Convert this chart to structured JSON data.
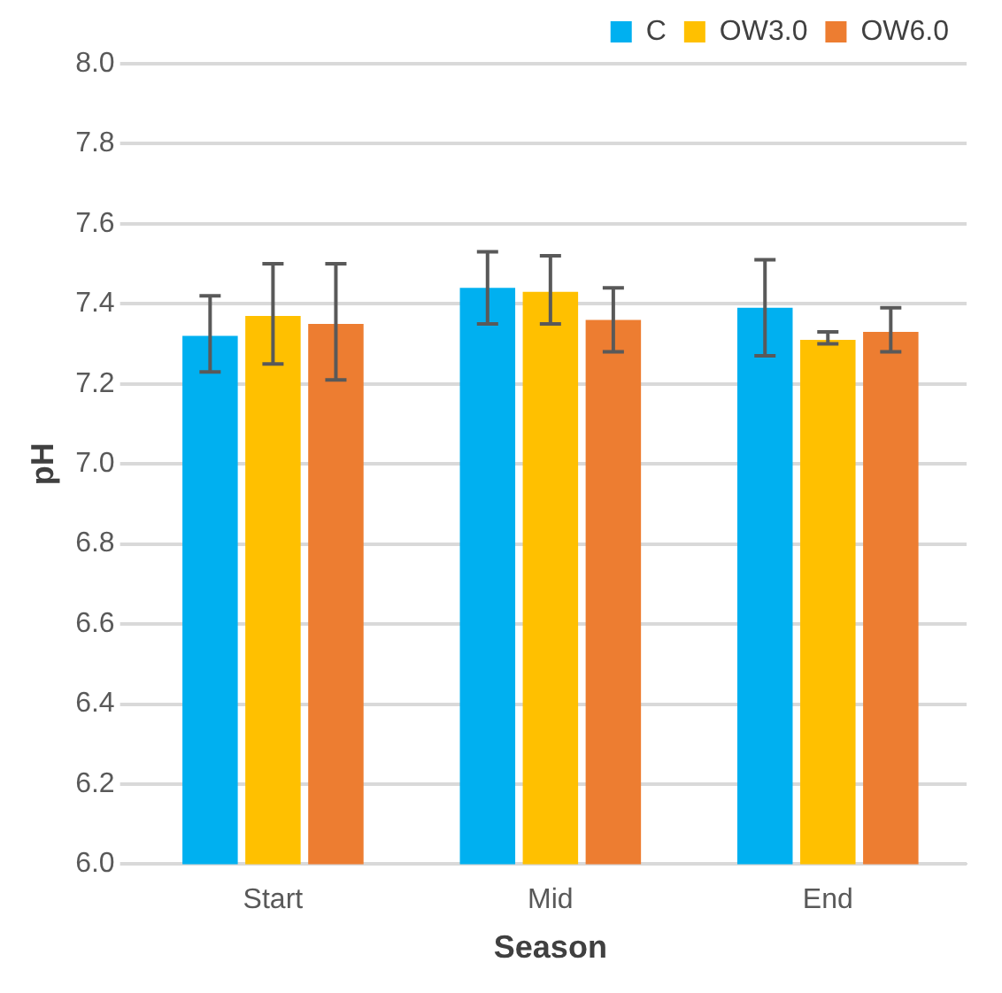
{
  "chart_data": {
    "type": "bar",
    "xlabel": "Season",
    "ylabel": "pH",
    "categories": [
      "Start",
      "Mid",
      "End"
    ],
    "series": [
      {
        "name": "C",
        "color": "#00b0f0",
        "values": [
          7.32,
          7.44,
          7.39
        ],
        "errors": [
          [
            7.23,
            7.42
          ],
          [
            7.35,
            7.53
          ],
          [
            7.27,
            7.51
          ]
        ]
      },
      {
        "name": "OW3.0",
        "color": "#ffc000",
        "values": [
          7.37,
          7.43,
          7.31
        ],
        "errors": [
          [
            7.25,
            7.5
          ],
          [
            7.35,
            7.52
          ],
          [
            7.3,
            7.33
          ]
        ]
      },
      {
        "name": "OW6.0",
        "color": "#ed7d31",
        "values": [
          7.35,
          7.36,
          7.33
        ],
        "errors": [
          [
            7.21,
            7.5
          ],
          [
            7.28,
            7.44
          ],
          [
            7.28,
            7.39
          ]
        ]
      }
    ],
    "ylim": [
      6.0,
      8.0
    ],
    "yticks": [
      {
        "value": 6.0,
        "label": "6.0"
      },
      {
        "value": 6.2,
        "label": "6.2"
      },
      {
        "value": 6.4,
        "label": "6.4"
      },
      {
        "value": 6.6,
        "label": "6.6"
      },
      {
        "value": 6.8,
        "label": "6.8"
      },
      {
        "value": 7.0,
        "label": "7.0"
      },
      {
        "value": 7.2,
        "label": "7.2"
      },
      {
        "value": 7.4,
        "label": "7.4"
      },
      {
        "value": 7.6,
        "label": "7.6"
      },
      {
        "value": 7.8,
        "label": "7.8"
      },
      {
        "value": 8.0,
        "label": "8.0"
      }
    ],
    "grid": "y",
    "legend": "top right"
  }
}
